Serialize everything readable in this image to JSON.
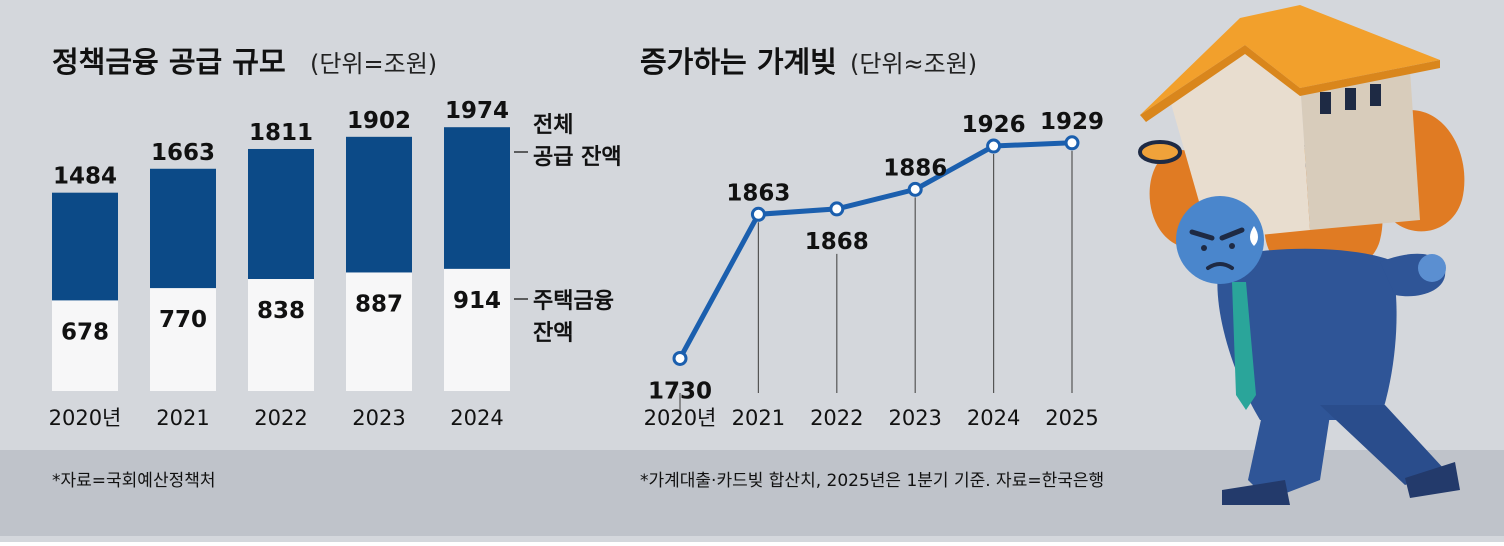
{
  "colors": {
    "background": "#d4d7dc",
    "footer_band": "#bfc3ca",
    "bar_total": "#0c4a87",
    "bar_housing": "#f7f7f8",
    "line": "#1b5fae",
    "text": "#111111"
  },
  "illustration": {
    "icon": "man-carrying-house-and-money-bags-illustration"
  },
  "left": {
    "title": "정책금융 공급 규모",
    "unit": "(단위=조원)",
    "source": "*자료=국회예산정책처"
  },
  "right": {
    "title": "증가하는 가계빚",
    "unit": "(단위≈조원)",
    "source": "*가계대출·카드빚 합산치, 2025년은 1분기 기준. 자료=한국은행"
  },
  "chart_data": [
    {
      "type": "bar",
      "title": "정책금융 공급 규모",
      "unit": "(단위=조원)",
      "categories": [
        "2020년",
        "2021",
        "2022",
        "2023",
        "2024"
      ],
      "series": [
        {
          "name": "전체 공급 잔액",
          "values": [
            1484,
            1663,
            1811,
            1902,
            1974
          ]
        },
        {
          "name": "주택금융 잔액",
          "values": [
            678,
            770,
            838,
            887,
            914
          ]
        }
      ],
      "legend": {
        "total_line1": "전체",
        "total_line2": "공급 잔액",
        "housing_line1": "주택금융",
        "housing_line2": "잔액"
      },
      "ylim": [
        0,
        2200
      ],
      "grid": false
    },
    {
      "type": "line",
      "title": "증가하는 가계빚",
      "unit": "(단위≈조원)",
      "categories": [
        "2020년",
        "2021",
        "2022",
        "2023",
        "2024",
        "2025"
      ],
      "values": [
        1730,
        1863,
        1868,
        1886,
        1926,
        1929
      ],
      "label_position": [
        "below",
        "above",
        "below",
        "above",
        "above",
        "above"
      ],
      "ylim": [
        1700,
        1950
      ],
      "grid": false
    }
  ]
}
